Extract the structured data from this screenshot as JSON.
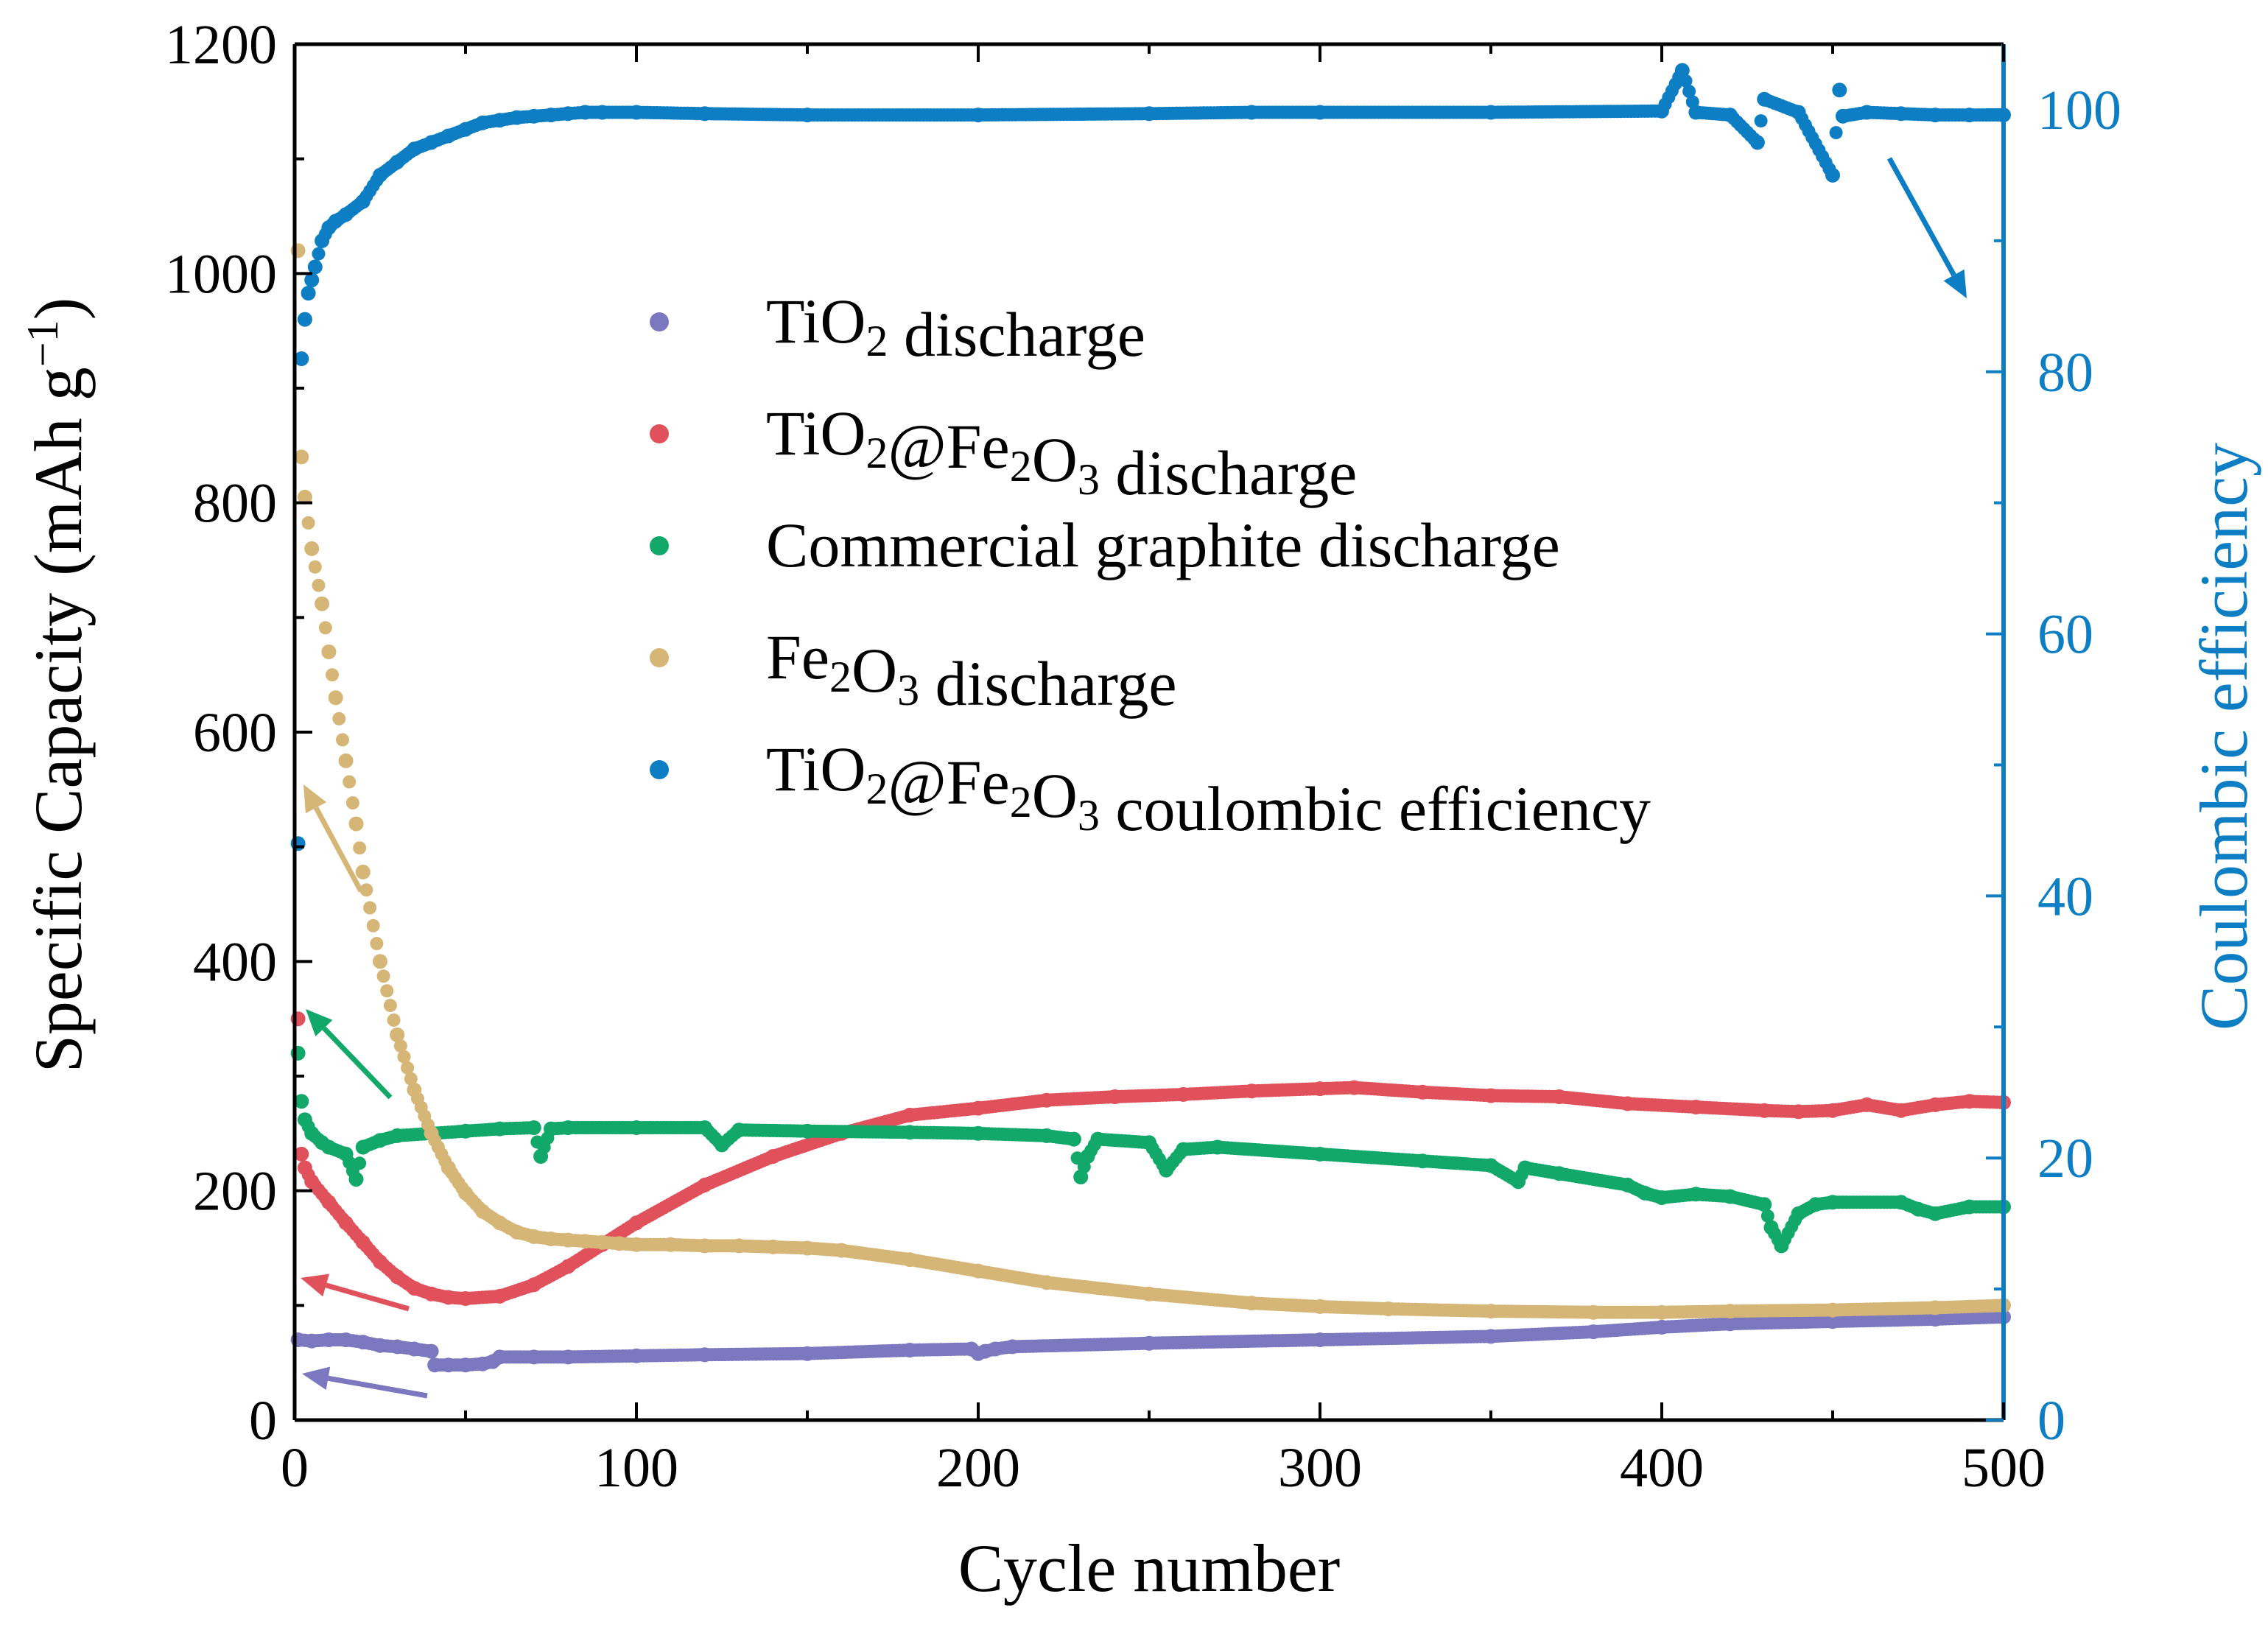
{
  "chart_data": {
    "type": "scatter",
    "title": "",
    "xlabel": "Cycle number",
    "ylabel": "Specific Capacity (mAh g−1)",
    "y2label": "Coulombic efficiency",
    "xlim": [
      0,
      500
    ],
    "ylim": [
      0,
      1200
    ],
    "y2lim": [
      0,
      105
    ],
    "x_ticks": [
      "0",
      "100",
      "200",
      "300",
      "400",
      "500"
    ],
    "y_ticks": [
      "0",
      "200",
      "400",
      "600",
      "800",
      "1000",
      "1200"
    ],
    "y2_ticks": [
      "0",
      "20",
      "40",
      "60",
      "80",
      "100"
    ],
    "legend_position": "center",
    "legend": [
      {
        "label": "TiO2 discharge",
        "text": [
          "TiO",
          "2",
          " discharge"
        ],
        "color": "#7b78c0"
      },
      {
        "label": "TiO2@Fe2O3 discharge",
        "text": [
          "TiO",
          "2",
          "@Fe",
          "2",
          "O",
          "3",
          " discharge"
        ],
        "color": "#e0515c"
      },
      {
        "label": "Commercial graphite discharge",
        "text": [
          "Commercial graphite discharge"
        ],
        "color": "#11a86a"
      },
      {
        "label": "Fe2O3 discharge",
        "text": [
          "Fe",
          "2",
          "O",
          "3",
          " discharge"
        ],
        "color": "#d6b676"
      },
      {
        "label": "TiO2@Fe2O3 coulombic efficiency",
        "text": [
          "TiO",
          "2",
          "@Fe",
          "2",
          "O",
          "3",
          " coulombic efficiency"
        ],
        "color": "#0e7ec4"
      }
    ],
    "series": [
      {
        "name": "TiO2 discharge",
        "axis": "left",
        "color": "#7b78c0",
        "x": [
          1,
          5,
          10,
          15,
          20,
          25,
          30,
          35,
          40,
          41,
          45,
          50,
          55,
          58,
          60,
          70,
          80,
          100,
          120,
          150,
          180,
          198,
          200,
          202,
          205,
          210,
          250,
          300,
          350,
          380,
          400,
          420,
          450,
          480,
          500
        ],
        "y": [
          70,
          69,
          70,
          70,
          68,
          65,
          64,
          62,
          60,
          48,
          48,
          48,
          49,
          51,
          55,
          55,
          55,
          56,
          57,
          58,
          61,
          62,
          58,
          60,
          62,
          64,
          67,
          70,
          73,
          77,
          81,
          84,
          86,
          88,
          90
        ]
      },
      {
        "name": "TiO2@Fe2O3 discharge",
        "axis": "left",
        "color": "#e0515c",
        "x": [
          1,
          2,
          3,
          5,
          10,
          15,
          20,
          25,
          30,
          35,
          40,
          45,
          50,
          60,
          70,
          80,
          90,
          100,
          120,
          140,
          160,
          180,
          200,
          220,
          240,
          260,
          280,
          300,
          310,
          330,
          350,
          370,
          390,
          410,
          430,
          440,
          450,
          460,
          470,
          480,
          490,
          500
        ],
        "y": [
          350,
          232,
          220,
          208,
          190,
          172,
          155,
          138,
          125,
          115,
          110,
          107,
          106,
          108,
          118,
          134,
          153,
          172,
          205,
          230,
          250,
          266,
          272,
          279,
          282,
          284,
          287,
          289,
          290,
          286,
          283,
          282,
          276,
          273,
          270,
          269,
          270,
          275,
          270,
          275,
          278,
          277
        ]
      },
      {
        "name": "Commercial graphite discharge",
        "axis": "left",
        "color": "#11a86a",
        "x": [
          1,
          2,
          3,
          5,
          8,
          10,
          15,
          18,
          20,
          25,
          30,
          40,
          50,
          60,
          70,
          72,
          75,
          80,
          100,
          120,
          125,
          130,
          150,
          180,
          200,
          220,
          228,
          230,
          232,
          235,
          250,
          255,
          260,
          270,
          300,
          330,
          350,
          358,
          360,
          370,
          390,
          395,
          400,
          410,
          420,
          430,
          432,
          435,
          440,
          445,
          450,
          470,
          475,
          480,
          490,
          500
        ],
        "y": [
          320,
          278,
          262,
          250,
          242,
          238,
          232,
          210,
          238,
          244,
          248,
          250,
          252,
          254,
          255,
          230,
          254,
          255,
          255,
          255,
          240,
          253,
          252,
          251,
          250,
          248,
          245,
          212,
          230,
          245,
          242,
          218,
          236,
          238,
          232,
          226,
          222,
          208,
          220,
          215,
          205,
          198,
          194,
          197,
          195,
          188,
          168,
          152,
          180,
          188,
          190,
          190,
          184,
          180,
          186,
          186
        ]
      },
      {
        "name": "Fe2O3 discharge",
        "axis": "left",
        "color": "#d6b676",
        "x": [
          1,
          2,
          3,
          5,
          8,
          10,
          12,
          15,
          18,
          20,
          25,
          30,
          35,
          40,
          45,
          50,
          55,
          60,
          65,
          70,
          75,
          80,
          85,
          90,
          95,
          100,
          110,
          120,
          130,
          140,
          150,
          160,
          180,
          200,
          220,
          250,
          280,
          300,
          320,
          350,
          380,
          400,
          420,
          450,
          480,
          500
        ],
        "y": [
          1020,
          840,
          805,
          760,
          712,
          670,
          630,
          575,
          520,
          478,
          400,
          336,
          288,
          250,
          220,
          198,
          182,
          172,
          164,
          160,
          158,
          157,
          156,
          155,
          154,
          153,
          153,
          152,
          152,
          151,
          150,
          148,
          140,
          130,
          120,
          110,
          102,
          99,
          97,
          95,
          94,
          94,
          95,
          96,
          98,
          100
        ]
      },
      {
        "name": "TiO2@Fe2O3 coulombic efficiency",
        "axis": "right",
        "color": "#0e7ec4",
        "x": [
          1,
          2,
          3,
          4,
          5,
          6,
          8,
          10,
          12,
          15,
          20,
          25,
          30,
          35,
          40,
          45,
          50,
          55,
          60,
          65,
          70,
          75,
          80,
          85,
          90,
          100,
          120,
          150,
          200,
          250,
          280,
          300,
          350,
          400,
          406,
          410,
          420,
          428,
          430,
          440,
          450,
          452,
          453,
          460,
          470,
          480,
          490,
          500
        ],
        "y": [
          44,
          81,
          84,
          86,
          87,
          88,
          90,
          91,
          91.5,
          92,
          93,
          95,
          96,
          97,
          97.5,
          98,
          98.5,
          99,
          99.2,
          99.4,
          99.5,
          99.6,
          99.7,
          99.8,
          99.8,
          99.8,
          99.7,
          99.6,
          99.6,
          99.7,
          99.8,
          99.8,
          99.8,
          99.9,
          103,
          99.8,
          99.6,
          97.5,
          100.8,
          99.8,
          95,
          101.5,
          99.5,
          99.8,
          99.7,
          99.6,
          99.6,
          99.6
        ]
      }
    ],
    "annotations": [
      {
        "type": "arrow",
        "points_to": "left",
        "series": "TiO2 discharge",
        "color": "#7b78c0"
      },
      {
        "type": "arrow",
        "points_to": "left",
        "series": "TiO2@Fe2O3 discharge",
        "color": "#e0515c"
      },
      {
        "type": "arrow",
        "points_to": "left",
        "series": "Commercial graphite discharge",
        "color": "#11a86a"
      },
      {
        "type": "arrow",
        "points_to": "left",
        "series": "Fe2O3 discharge",
        "color": "#d6b676"
      },
      {
        "type": "arrow",
        "points_to": "right",
        "series": "TiO2@Fe2O3 coulombic efficiency",
        "color": "#0e7ec4"
      }
    ]
  }
}
